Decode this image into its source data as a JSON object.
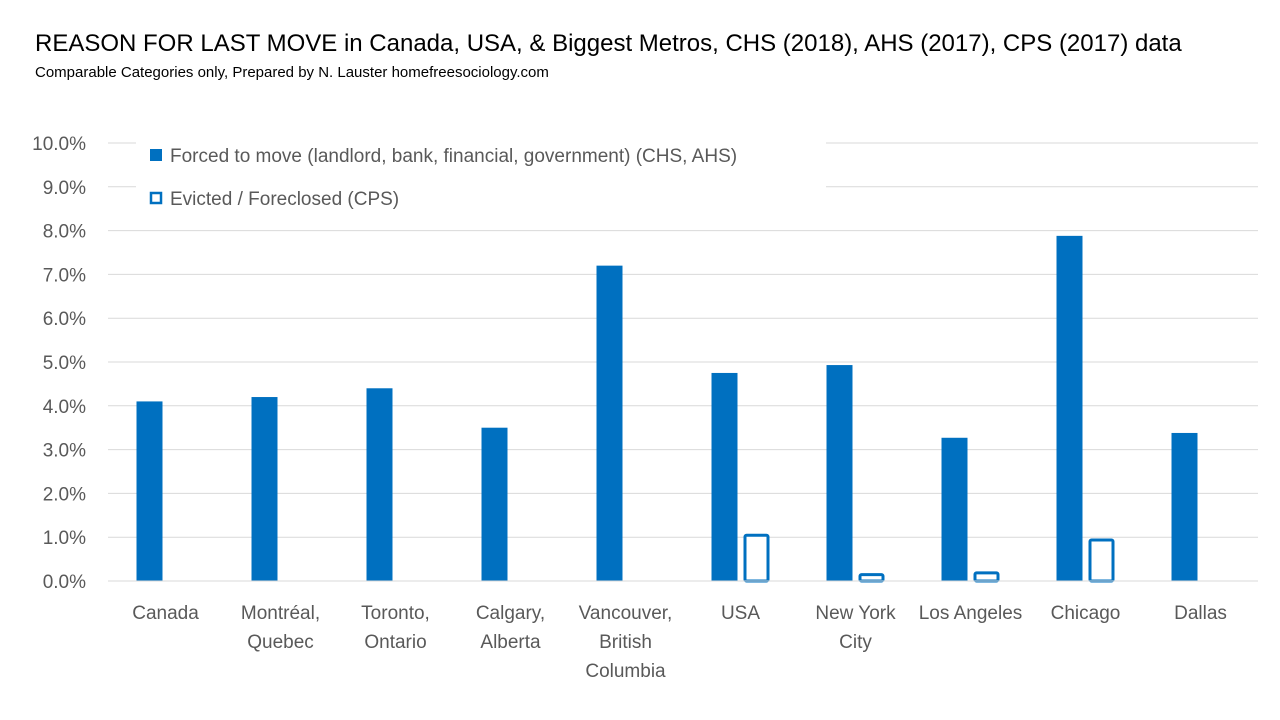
{
  "chart_data": {
    "type": "bar",
    "title": "REASON FOR LAST MOVE in Canada, USA, & Biggest Metros, CHS (2018), AHS (2017), CPS (2017) data",
    "subtitle": "Comparable Categories only, Prepared by N. Lauster  homefreesociology.com",
    "categories": [
      [
        "Canada"
      ],
      [
        "Montréal,",
        "Quebec"
      ],
      [
        "Toronto,",
        "Ontario"
      ],
      [
        "Calgary,",
        "Alberta"
      ],
      [
        "Vancouver,",
        "British",
        "Columbia"
      ],
      [
        "USA"
      ],
      [
        "New York",
        "City"
      ],
      [
        "Los Angeles"
      ],
      [
        "Chicago"
      ],
      [
        "Dallas"
      ]
    ],
    "series": [
      {
        "name": "Forced to move (landlord, bank, financial, government) (CHS, AHS)",
        "style": "filled",
        "color": "#0070C0",
        "values": [
          4.1,
          4.2,
          4.4,
          3.5,
          7.2,
          4.75,
          4.93,
          3.27,
          7.88,
          3.38
        ]
      },
      {
        "name": "Evicted / Foreclosed (CPS)",
        "style": "outline",
        "color": "#0070C0",
        "values": [
          null,
          null,
          null,
          null,
          null,
          1.08,
          0.18,
          0.22,
          0.97,
          null
        ]
      }
    ],
    "ylim": [
      0,
      10
    ],
    "yticks": [
      "0.0%",
      "1.0%",
      "2.0%",
      "3.0%",
      "4.0%",
      "5.0%",
      "6.0%",
      "7.0%",
      "8.0%",
      "9.0%",
      "10.0%"
    ],
    "xlabel": "",
    "ylabel": "",
    "grid": true,
    "legend_position": "top-left"
  }
}
